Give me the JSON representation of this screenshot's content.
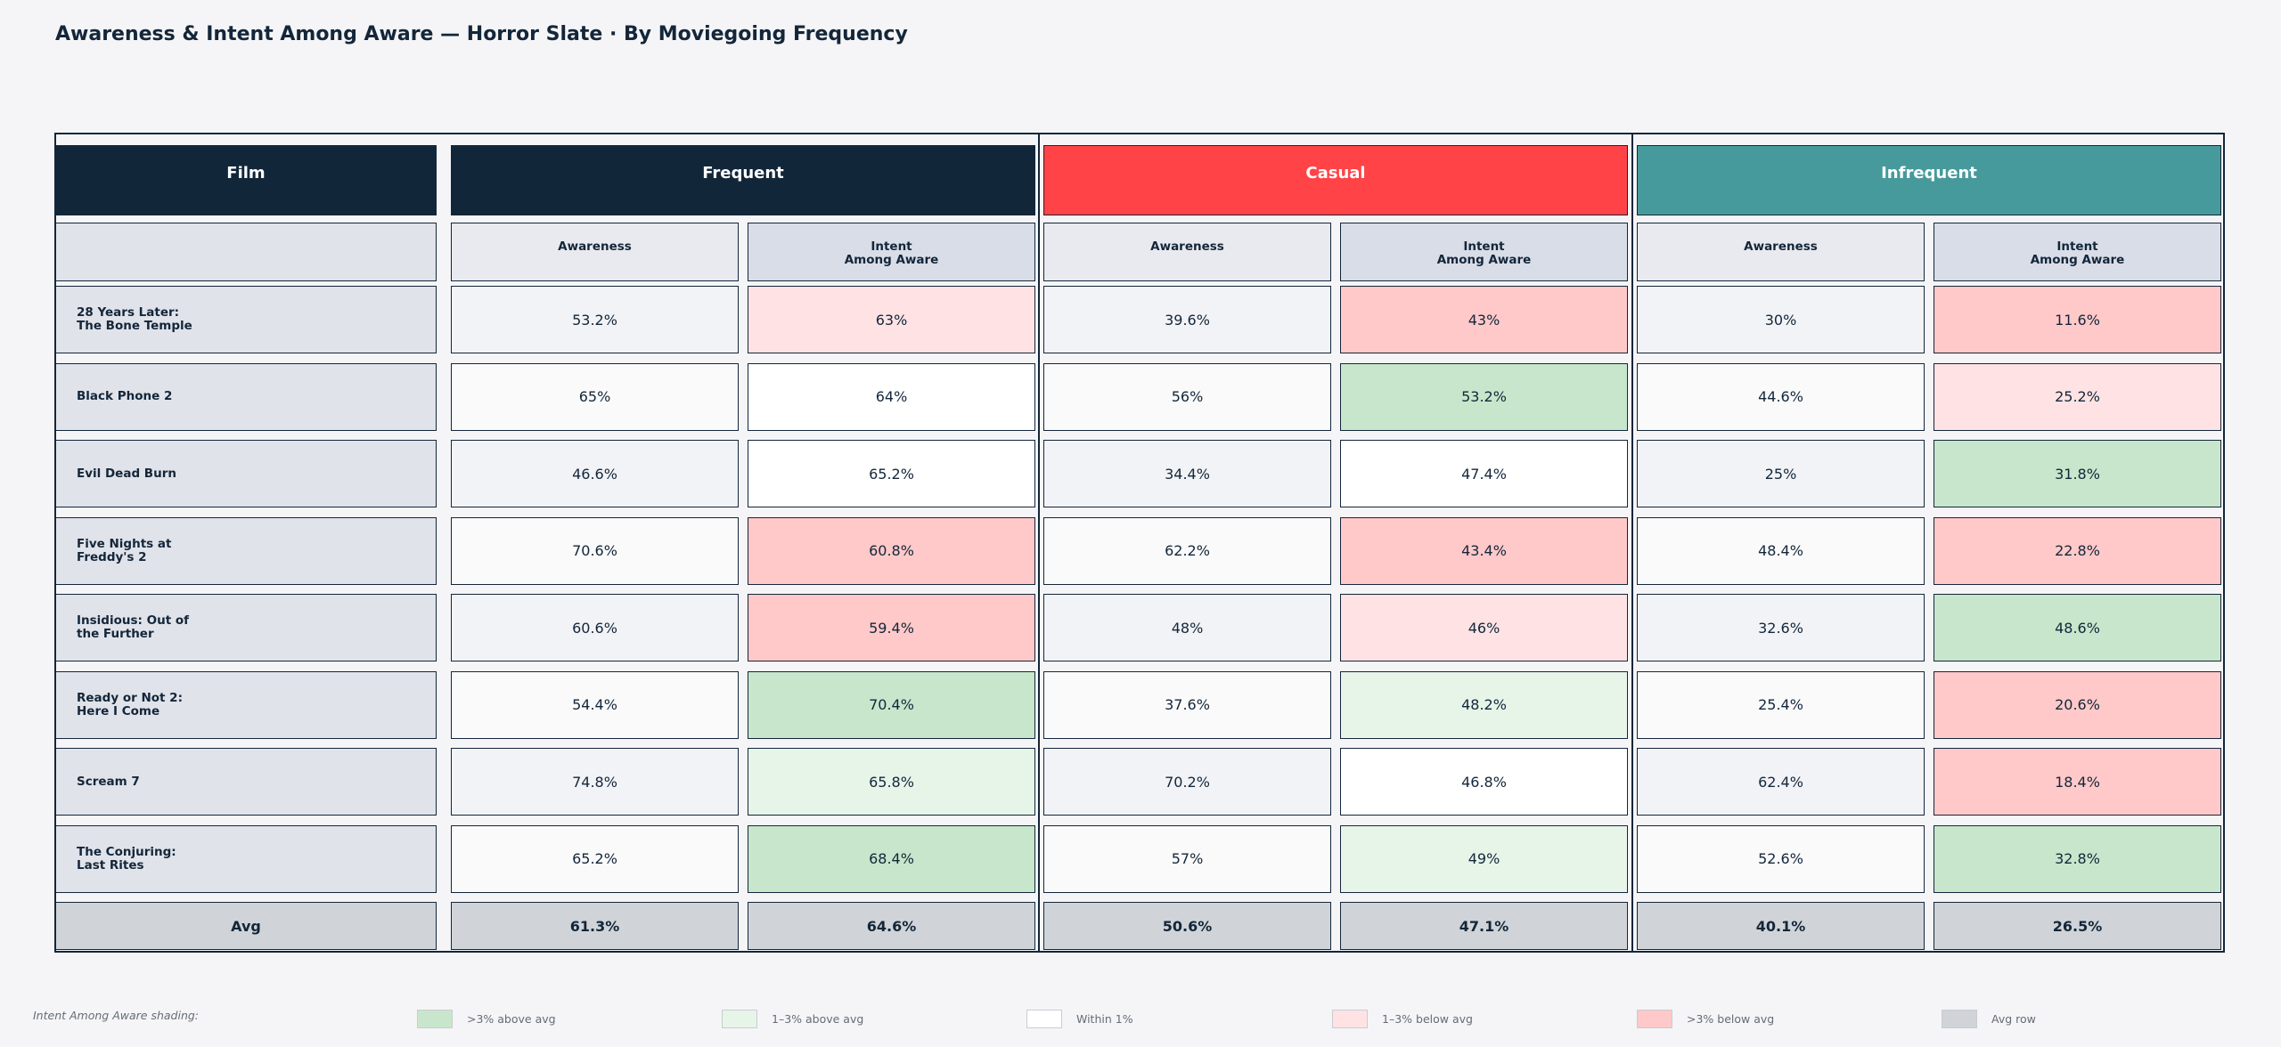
{
  "title": "Awareness & Intent Among Aware — Horror Slate  ·  By Moviegoing Frequency",
  "colors": {
    "header_frequent": "#12263a",
    "header_casual": "#ff4347",
    "header_infrequent": "#469a9c",
    "header_film": "#12263a",
    "strong_above": "#c8e6cb",
    "mild_above": "#e7f5e9",
    "within": "#ffffff",
    "mild_below": "#ffe3e4",
    "strong_below": "#ffc9c9",
    "avg_row": "#d0d4d8"
  },
  "chart_data": {
    "type": "table",
    "title": "Awareness & Intent Among Aware — Horror Slate  ·  By Moviegoing Frequency",
    "row_header_label": "Film",
    "groups": [
      "Frequent",
      "Casual",
      "Infrequent"
    ],
    "metrics": [
      "Awareness",
      "Intent\nAmong Aware"
    ],
    "films": [
      "28 Years Later:\nThe Bone Temple",
      "Black Phone 2",
      "Evil Dead Burn",
      "Five Nights at\nFreddy's 2",
      "Insidious: Out of\nthe Further",
      "Ready or Not 2:\nHere I Come",
      "Scream 7",
      "The Conjuring:\nLast Rites"
    ],
    "values": [
      [
        "53.2%",
        "63%",
        "39.6%",
        "43%",
        "30%",
        "11.6%"
      ],
      [
        "65%",
        "64%",
        "56%",
        "53.2%",
        "44.6%",
        "25.2%"
      ],
      [
        "46.6%",
        "65.2%",
        "34.4%",
        "47.4%",
        "25%",
        "31.8%"
      ],
      [
        "70.6%",
        "60.8%",
        "62.2%",
        "43.4%",
        "48.4%",
        "22.8%"
      ],
      [
        "60.6%",
        "59.4%",
        "48%",
        "46%",
        "32.6%",
        "48.6%"
      ],
      [
        "54.4%",
        "70.4%",
        "37.6%",
        "48.2%",
        "25.4%",
        "20.6%"
      ],
      [
        "74.8%",
        "65.8%",
        "70.2%",
        "46.8%",
        "62.4%",
        "18.4%"
      ],
      [
        "65.2%",
        "68.4%",
        "57%",
        "49%",
        "52.6%",
        "32.8%"
      ]
    ],
    "shading": [
      [
        "",
        "mild_below",
        "",
        "strong_below",
        "",
        "strong_below"
      ],
      [
        "",
        "within",
        "",
        "strong_above",
        "",
        "mild_below"
      ],
      [
        "",
        "within",
        "",
        "within",
        "",
        "strong_above"
      ],
      [
        "",
        "strong_below",
        "",
        "strong_below",
        "",
        "strong_below"
      ],
      [
        "",
        "strong_below",
        "",
        "mild_below",
        "",
        "strong_above"
      ],
      [
        "",
        "strong_above",
        "",
        "mild_above",
        "",
        "strong_below"
      ],
      [
        "",
        "mild_above",
        "",
        "within",
        "",
        "strong_below"
      ],
      [
        "",
        "strong_above",
        "",
        "mild_above",
        "",
        "strong_above"
      ]
    ],
    "avg_label": "Avg",
    "avg_values": [
      "61.3%",
      "64.6%",
      "50.6%",
      "47.1%",
      "40.1%",
      "26.5%"
    ]
  },
  "legend": {
    "title": "Intent Among Aware shading:",
    "items": [
      {
        "key": "strong_above",
        "label": ">3% above avg"
      },
      {
        "key": "mild_above",
        "label": "1–3% above avg"
      },
      {
        "key": "within",
        "label": "Within 1%"
      },
      {
        "key": "mild_below",
        "label": "1–3% below avg"
      },
      {
        "key": "strong_below",
        "label": ">3% below avg"
      },
      {
        "key": "avg_row",
        "label": "Avg row"
      }
    ]
  }
}
